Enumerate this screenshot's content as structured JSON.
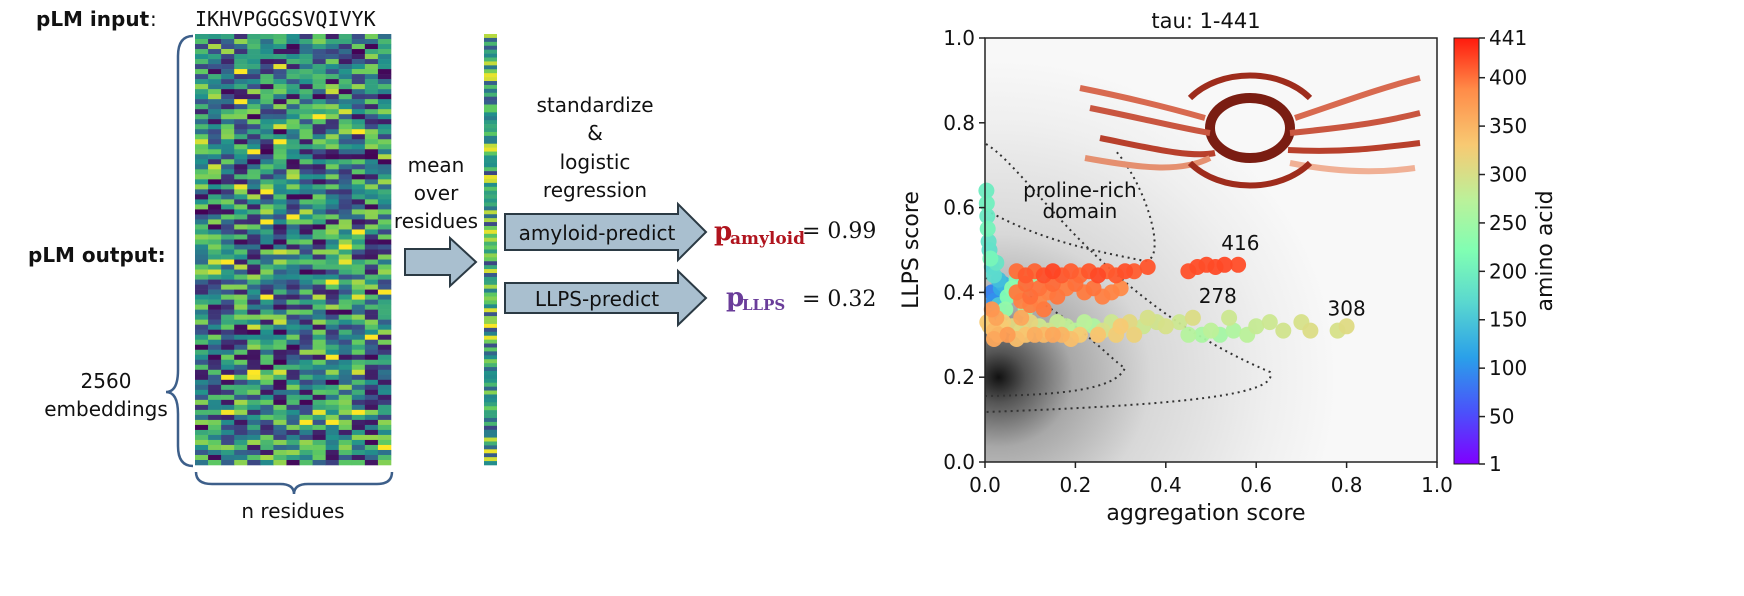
{
  "left_panel": {
    "plm_input_label": "pLM input",
    "plm_input_colon": ":",
    "sequence": "IKHVPGGGSVQIVYK",
    "plm_output_label": "pLM output:",
    "embeddings_count": "2560",
    "embeddings_label": "embeddings",
    "residues_label": "n residues",
    "mean_lines": [
      "mean",
      "over",
      "residues"
    ],
    "standardize_lines": [
      "standardize",
      "&",
      "logistic",
      "regression"
    ],
    "amyloid_arrow_label": "amyloid-predict",
    "llps_arrow_label": "LLPS-predict",
    "p_amyloid_symbol": "p",
    "p_amyloid_sub": "amyloid",
    "p_amyloid_value": "= 0.99",
    "p_llps_symbol": "p",
    "p_llps_sub": "LLPS",
    "p_llps_value": "= 0.32",
    "colors": {
      "amyloid": "#b0141e",
      "llps": "#6a3d9a",
      "arrow_fill": "#a9bfcf",
      "arrow_stroke": "#2b3a44",
      "brace": "#3d5f8a"
    }
  },
  "chart_data": {
    "type": "scatter",
    "title": "tau: 1-441",
    "xlabel": "aggregation score",
    "ylabel": "LLPS score",
    "xlim": [
      0,
      1
    ],
    "ylim": [
      0,
      1
    ],
    "xticks": [
      "0.0",
      "0.2",
      "0.4",
      "0.6",
      "0.8",
      "1.0"
    ],
    "yticks": [
      "0.0",
      "0.2",
      "0.4",
      "0.6",
      "0.8",
      "1.0"
    ],
    "grid": false,
    "colorbar": {
      "label": "amino acid",
      "min": 1,
      "max": 441,
      "ticks": [
        "1",
        "50",
        "100",
        "150",
        "200",
        "250",
        "300",
        "350",
        "400",
        "441"
      ],
      "tick_values": [
        1,
        50,
        100,
        150,
        200,
        250,
        300,
        350,
        400,
        441
      ]
    },
    "annotations": [
      {
        "text": "proline-rich",
        "x": 0.21,
        "y": 0.625
      },
      {
        "text": "domain",
        "x": 0.21,
        "y": 0.575
      },
      {
        "text": "416",
        "x": 0.565,
        "y": 0.5
      },
      {
        "text": "278",
        "x": 0.515,
        "y": 0.375
      },
      {
        "text": "308",
        "x": 0.8,
        "y": 0.345
      }
    ],
    "points": [
      {
        "x": 0.003,
        "y": 0.64,
        "aa": 195
      },
      {
        "x": 0.004,
        "y": 0.61,
        "aa": 200
      },
      {
        "x": 0.005,
        "y": 0.58,
        "aa": 190
      },
      {
        "x": 0.006,
        "y": 0.55,
        "aa": 205
      },
      {
        "x": 0.008,
        "y": 0.52,
        "aa": 180
      },
      {
        "x": 0.01,
        "y": 0.5,
        "aa": 175
      },
      {
        "x": 0.012,
        "y": 0.48,
        "aa": 210
      },
      {
        "x": 0.015,
        "y": 0.46,
        "aa": 160
      },
      {
        "x": 0.02,
        "y": 0.44,
        "aa": 170
      },
      {
        "x": 0.025,
        "y": 0.47,
        "aa": 185
      },
      {
        "x": 0.03,
        "y": 0.43,
        "aa": 140
      },
      {
        "x": 0.035,
        "y": 0.41,
        "aa": 120
      },
      {
        "x": 0.04,
        "y": 0.42,
        "aa": 130
      },
      {
        "x": 0.015,
        "y": 0.4,
        "aa": 90
      },
      {
        "x": 0.02,
        "y": 0.38,
        "aa": 100
      },
      {
        "x": 0.03,
        "y": 0.37,
        "aa": 150
      },
      {
        "x": 0.05,
        "y": 0.39,
        "aa": 220
      },
      {
        "x": 0.06,
        "y": 0.41,
        "aa": 230
      },
      {
        "x": 0.07,
        "y": 0.43,
        "aa": 215
      },
      {
        "x": 0.08,
        "y": 0.4,
        "aa": 235
      },
      {
        "x": 0.045,
        "y": 0.36,
        "aa": 240
      },
      {
        "x": 0.09,
        "y": 0.36,
        "aa": 250
      },
      {
        "x": 0.1,
        "y": 0.44,
        "aa": 245
      },
      {
        "x": 0.005,
        "y": 0.33,
        "aa": 330
      },
      {
        "x": 0.01,
        "y": 0.32,
        "aa": 320
      },
      {
        "x": 0.02,
        "y": 0.31,
        "aa": 345
      },
      {
        "x": 0.03,
        "y": 0.3,
        "aa": 350
      },
      {
        "x": 0.04,
        "y": 0.33,
        "aa": 325
      },
      {
        "x": 0.06,
        "y": 0.32,
        "aa": 310
      },
      {
        "x": 0.08,
        "y": 0.31,
        "aa": 300
      },
      {
        "x": 0.1,
        "y": 0.33,
        "aa": 315
      },
      {
        "x": 0.12,
        "y": 0.32,
        "aa": 290
      },
      {
        "x": 0.14,
        "y": 0.31,
        "aa": 295
      },
      {
        "x": 0.16,
        "y": 0.33,
        "aa": 285
      },
      {
        "x": 0.18,
        "y": 0.32,
        "aa": 280
      },
      {
        "x": 0.2,
        "y": 0.31,
        "aa": 270
      },
      {
        "x": 0.22,
        "y": 0.33,
        "aa": 275
      },
      {
        "x": 0.24,
        "y": 0.32,
        "aa": 265
      },
      {
        "x": 0.26,
        "y": 0.31,
        "aa": 300
      },
      {
        "x": 0.28,
        "y": 0.33,
        "aa": 290
      },
      {
        "x": 0.3,
        "y": 0.32,
        "aa": 330
      },
      {
        "x": 0.32,
        "y": 0.33,
        "aa": 310
      },
      {
        "x": 0.35,
        "y": 0.32,
        "aa": 290
      },
      {
        "x": 0.38,
        "y": 0.33,
        "aa": 295
      },
      {
        "x": 0.4,
        "y": 0.32,
        "aa": 300
      },
      {
        "x": 0.43,
        "y": 0.33,
        "aa": 290
      },
      {
        "x": 0.45,
        "y": 0.3,
        "aa": 270
      },
      {
        "x": 0.48,
        "y": 0.3,
        "aa": 260
      },
      {
        "x": 0.5,
        "y": 0.31,
        "aa": 278
      },
      {
        "x": 0.52,
        "y": 0.3,
        "aa": 255
      },
      {
        "x": 0.55,
        "y": 0.31,
        "aa": 265
      },
      {
        "x": 0.58,
        "y": 0.3,
        "aa": 275
      },
      {
        "x": 0.6,
        "y": 0.32,
        "aa": 285
      },
      {
        "x": 0.63,
        "y": 0.33,
        "aa": 290
      },
      {
        "x": 0.66,
        "y": 0.31,
        "aa": 295
      },
      {
        "x": 0.7,
        "y": 0.33,
        "aa": 300
      },
      {
        "x": 0.72,
        "y": 0.31,
        "aa": 305
      },
      {
        "x": 0.78,
        "y": 0.31,
        "aa": 300
      },
      {
        "x": 0.8,
        "y": 0.32,
        "aa": 308
      },
      {
        "x": 0.36,
        "y": 0.34,
        "aa": 300
      },
      {
        "x": 0.46,
        "y": 0.34,
        "aa": 305
      },
      {
        "x": 0.54,
        "y": 0.34,
        "aa": 290
      },
      {
        "x": 0.02,
        "y": 0.29,
        "aa": 360
      },
      {
        "x": 0.05,
        "y": 0.3,
        "aa": 370
      },
      {
        "x": 0.07,
        "y": 0.29,
        "aa": 340
      },
      {
        "x": 0.09,
        "y": 0.3,
        "aa": 335
      },
      {
        "x": 0.11,
        "y": 0.3,
        "aa": 355
      },
      {
        "x": 0.13,
        "y": 0.3,
        "aa": 345
      },
      {
        "x": 0.15,
        "y": 0.3,
        "aa": 360
      },
      {
        "x": 0.17,
        "y": 0.3,
        "aa": 350
      },
      {
        "x": 0.19,
        "y": 0.29,
        "aa": 340
      },
      {
        "x": 0.21,
        "y": 0.3,
        "aa": 330
      },
      {
        "x": 0.25,
        "y": 0.3,
        "aa": 335
      },
      {
        "x": 0.29,
        "y": 0.3,
        "aa": 325
      },
      {
        "x": 0.33,
        "y": 0.3,
        "aa": 320
      },
      {
        "x": 0.025,
        "y": 0.34,
        "aa": 365
      },
      {
        "x": 0.015,
        "y": 0.36,
        "aa": 375
      },
      {
        "x": 0.08,
        "y": 0.34,
        "aa": 360
      },
      {
        "x": 0.035,
        "y": 0.32,
        "aa": 330
      },
      {
        "x": 0.07,
        "y": 0.45,
        "aa": 400
      },
      {
        "x": 0.09,
        "y": 0.44,
        "aa": 410
      },
      {
        "x": 0.11,
        "y": 0.45,
        "aa": 405
      },
      {
        "x": 0.13,
        "y": 0.44,
        "aa": 415
      },
      {
        "x": 0.15,
        "y": 0.45,
        "aa": 420
      },
      {
        "x": 0.17,
        "y": 0.44,
        "aa": 410
      },
      {
        "x": 0.19,
        "y": 0.45,
        "aa": 408
      },
      {
        "x": 0.21,
        "y": 0.44,
        "aa": 402
      },
      {
        "x": 0.23,
        "y": 0.45,
        "aa": 412
      },
      {
        "x": 0.25,
        "y": 0.44,
        "aa": 418
      },
      {
        "x": 0.27,
        "y": 0.45,
        "aa": 407
      },
      {
        "x": 0.29,
        "y": 0.44,
        "aa": 411
      },
      {
        "x": 0.31,
        "y": 0.45,
        "aa": 415
      },
      {
        "x": 0.33,
        "y": 0.45,
        "aa": 409
      },
      {
        "x": 0.36,
        "y": 0.46,
        "aa": 413
      },
      {
        "x": 0.45,
        "y": 0.45,
        "aa": 414
      },
      {
        "x": 0.47,
        "y": 0.46,
        "aa": 416
      },
      {
        "x": 0.49,
        "y": 0.465,
        "aa": 416
      },
      {
        "x": 0.51,
        "y": 0.46,
        "aa": 417
      },
      {
        "x": 0.53,
        "y": 0.465,
        "aa": 418
      },
      {
        "x": 0.56,
        "y": 0.465,
        "aa": 416
      },
      {
        "x": 0.07,
        "y": 0.4,
        "aa": 395
      },
      {
        "x": 0.08,
        "y": 0.38,
        "aa": 390
      },
      {
        "x": 0.1,
        "y": 0.39,
        "aa": 400
      },
      {
        "x": 0.1,
        "y": 0.37,
        "aa": 392
      },
      {
        "x": 0.12,
        "y": 0.41,
        "aa": 398
      },
      {
        "x": 0.12,
        "y": 0.38,
        "aa": 388
      },
      {
        "x": 0.13,
        "y": 0.36,
        "aa": 395
      },
      {
        "x": 0.14,
        "y": 0.4,
        "aa": 390
      },
      {
        "x": 0.15,
        "y": 0.42,
        "aa": 402
      },
      {
        "x": 0.16,
        "y": 0.39,
        "aa": 396
      },
      {
        "x": 0.18,
        "y": 0.41,
        "aa": 393
      },
      {
        "x": 0.2,
        "y": 0.42,
        "aa": 399
      },
      {
        "x": 0.22,
        "y": 0.4,
        "aa": 394
      },
      {
        "x": 0.24,
        "y": 0.41,
        "aa": 397
      },
      {
        "x": 0.26,
        "y": 0.39,
        "aa": 391
      },
      {
        "x": 0.28,
        "y": 0.4,
        "aa": 389
      },
      {
        "x": 0.3,
        "y": 0.41,
        "aa": 386
      },
      {
        "x": 0.09,
        "y": 0.42,
        "aa": 401
      }
    ]
  }
}
